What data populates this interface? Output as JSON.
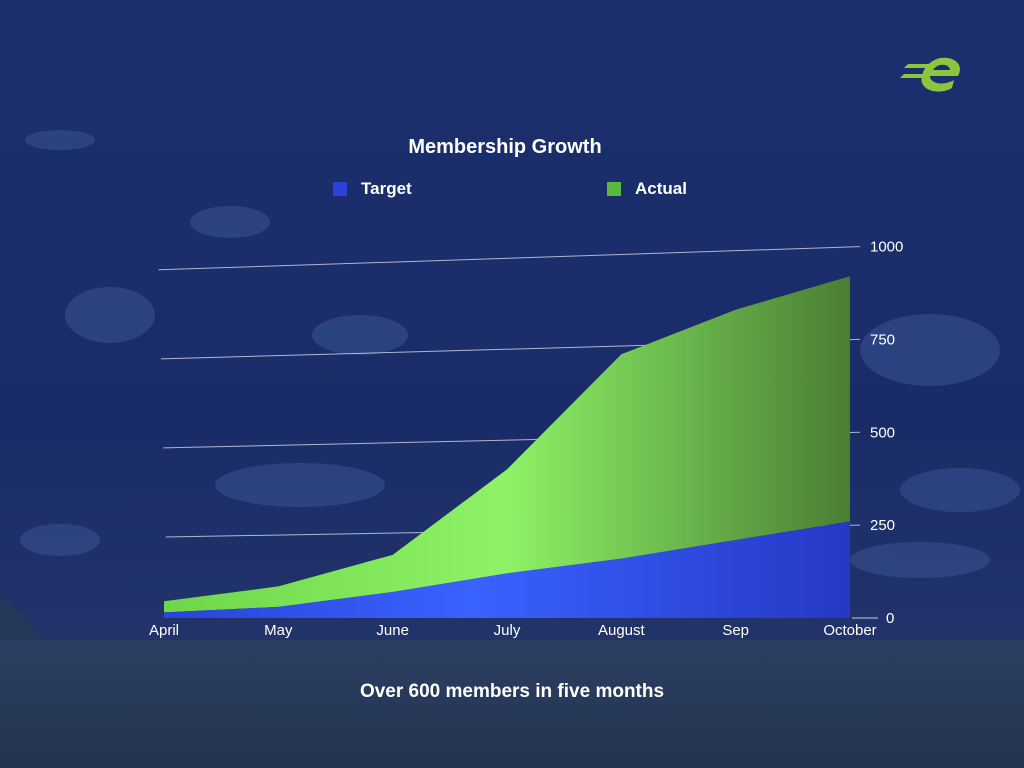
{
  "colors": {
    "target": "#2a44d8",
    "actual": "#6fd64a",
    "background": "#1c2f6e",
    "text": "#ffffff"
  },
  "logo": {
    "icon": "e-logo-icon"
  },
  "chart_data": {
    "type": "area",
    "title": "Membership Growth",
    "categories": [
      "April",
      "May",
      "June",
      "July",
      "August",
      "Sep",
      "October"
    ],
    "series": [
      {
        "name": "Target",
        "values": [
          15,
          30,
          70,
          120,
          160,
          210,
          260
        ]
      },
      {
        "name": "Actual",
        "values": [
          30,
          55,
          100,
          280,
          550,
          620,
          660
        ]
      }
    ],
    "stacked": true,
    "yticks": [
      0,
      250,
      500,
      750,
      1000
    ],
    "ylim": [
      0,
      1050
    ],
    "grid": true,
    "legend_position": "top"
  },
  "caption": "Over 600 members in five months"
}
